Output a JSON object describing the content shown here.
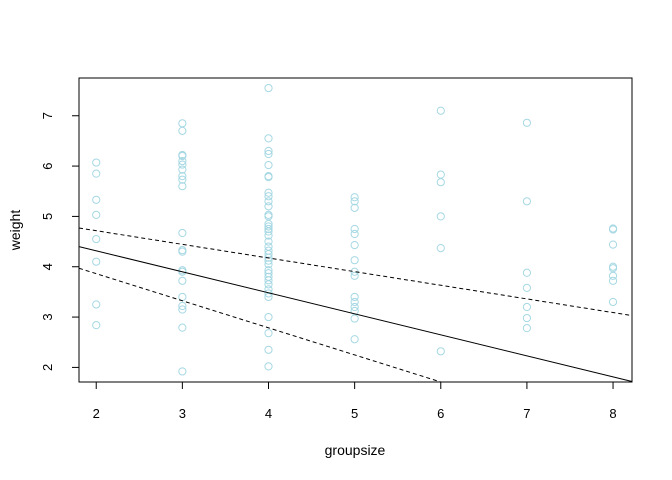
{
  "chart_data": {
    "type": "scatter",
    "title": "",
    "xlabel": "groupsize",
    "ylabel": "weight",
    "xlim": [
      1.8,
      8.22
    ],
    "ylim": [
      1.71,
      7.75
    ],
    "xticks": [
      2,
      3,
      4,
      5,
      6,
      7,
      8
    ],
    "yticks": [
      2,
      3,
      4,
      5,
      6,
      7
    ],
    "grid": false,
    "point_color": "#a6d8e3",
    "line_color": "#000000",
    "points": [
      [
        2,
        6.07
      ],
      [
        2,
        5.85
      ],
      [
        2,
        5.33
      ],
      [
        2,
        5.03
      ],
      [
        2,
        4.55
      ],
      [
        2,
        4.1
      ],
      [
        2,
        3.25
      ],
      [
        2,
        2.84
      ],
      [
        3,
        6.85
      ],
      [
        3,
        6.7
      ],
      [
        3,
        6.22
      ],
      [
        3,
        6.2
      ],
      [
        3,
        6.1
      ],
      [
        3,
        6.03
      ],
      [
        3,
        5.93
      ],
      [
        3,
        5.8
      ],
      [
        3,
        5.73
      ],
      [
        3,
        5.6
      ],
      [
        3,
        4.67
      ],
      [
        3,
        4.33
      ],
      [
        3,
        4.3
      ],
      [
        3,
        3.93
      ],
      [
        3,
        3.9
      ],
      [
        3,
        3.72
      ],
      [
        3,
        3.4
      ],
      [
        3,
        3.22
      ],
      [
        3,
        3.15
      ],
      [
        3,
        2.79
      ],
      [
        3,
        1.92
      ],
      [
        4,
        7.55
      ],
      [
        4,
        6.55
      ],
      [
        4,
        6.3
      ],
      [
        4,
        6.24
      ],
      [
        4,
        6.02
      ],
      [
        4,
        5.8
      ],
      [
        4,
        5.78
      ],
      [
        4,
        5.47
      ],
      [
        4,
        5.4
      ],
      [
        4,
        5.3
      ],
      [
        4,
        5.2
      ],
      [
        4,
        5.03
      ],
      [
        4,
        5.0
      ],
      [
        4,
        4.85
      ],
      [
        4,
        4.8
      ],
      [
        4,
        4.75
      ],
      [
        4,
        4.7
      ],
      [
        4,
        4.62
      ],
      [
        4,
        4.5
      ],
      [
        4,
        4.4
      ],
      [
        4,
        4.32
      ],
      [
        4,
        4.25
      ],
      [
        4,
        4.18
      ],
      [
        4,
        4.12
      ],
      [
        4,
        4.05
      ],
      [
        4,
        3.93
      ],
      [
        4,
        3.87
      ],
      [
        4,
        3.8
      ],
      [
        4,
        3.73
      ],
      [
        4,
        3.65
      ],
      [
        4,
        3.55
      ],
      [
        4,
        3.47
      ],
      [
        4,
        3.4
      ],
      [
        4,
        3.0
      ],
      [
        4,
        2.68
      ],
      [
        4,
        2.35
      ],
      [
        4,
        2.02
      ],
      [
        5,
        5.38
      ],
      [
        5,
        5.3
      ],
      [
        5,
        5.17
      ],
      [
        5,
        4.75
      ],
      [
        5,
        4.65
      ],
      [
        5,
        4.43
      ],
      [
        5,
        4.13
      ],
      [
        5,
        3.9
      ],
      [
        5,
        3.82
      ],
      [
        5,
        3.4
      ],
      [
        5,
        3.3
      ],
      [
        5,
        3.2
      ],
      [
        5,
        3.12
      ],
      [
        5,
        2.97
      ],
      [
        5,
        2.56
      ],
      [
        6,
        7.1
      ],
      [
        6,
        5.83
      ],
      [
        6,
        5.68
      ],
      [
        6,
        5.0
      ],
      [
        6,
        4.37
      ],
      [
        6,
        2.32
      ],
      [
        7,
        6.86
      ],
      [
        7,
        5.3
      ],
      [
        7,
        3.88
      ],
      [
        7,
        3.58
      ],
      [
        7,
        3.2
      ],
      [
        7,
        2.98
      ],
      [
        7,
        2.78
      ],
      [
        8,
        4.76
      ],
      [
        8,
        4.74
      ],
      [
        8,
        4.44
      ],
      [
        8,
        4.0
      ],
      [
        8,
        3.97
      ],
      [
        8,
        3.82
      ],
      [
        8,
        3.72
      ],
      [
        8,
        3.3
      ]
    ],
    "lines": [
      {
        "style": "solid",
        "x": [
          1.8,
          8.22
        ],
        "y": [
          4.4,
          1.72
        ]
      },
      {
        "style": "dashed",
        "x": [
          1.8,
          8.22
        ],
        "y": [
          4.77,
          3.03
        ]
      },
      {
        "style": "dashed",
        "x": [
          1.8,
          6.0
        ],
        "y": [
          3.97,
          1.71
        ]
      }
    ]
  }
}
